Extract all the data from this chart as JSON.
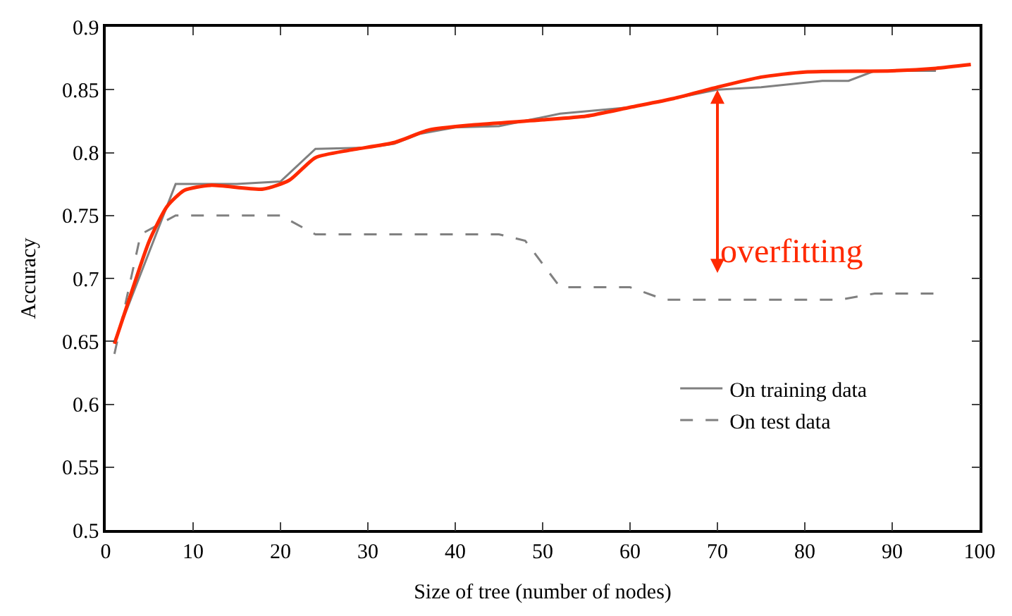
{
  "chart_data": {
    "type": "line",
    "xlabel": "Size of tree (number of nodes)",
    "ylabel": "Accuracy",
    "xlim": [
      0,
      100
    ],
    "xticks": [
      0,
      10,
      20,
      30,
      40,
      50,
      60,
      70,
      80,
      90,
      100
    ],
    "ylim": [
      0.5,
      0.9
    ],
    "yticks": [
      0.5,
      0.55,
      0.6,
      0.65,
      0.7,
      0.75,
      0.8,
      0.85,
      0.9
    ],
    "legend": "bottom right",
    "marker": "none",
    "series": [
      {
        "name": "On training data",
        "color": "#808080",
        "line_style": "solid",
        "x": [
          1,
          8,
          15,
          20,
          24,
          30,
          33,
          36,
          40,
          45,
          52,
          60,
          65,
          70,
          75,
          82,
          85,
          88,
          95
        ],
        "values": [
          0.65,
          0.775,
          0.775,
          0.777,
          0.803,
          0.804,
          0.807,
          0.815,
          0.82,
          0.821,
          0.831,
          0.836,
          0.843,
          0.85,
          0.852,
          0.857,
          0.857,
          0.865,
          0.865
        ]
      },
      {
        "name": "On test data",
        "color": "#808080",
        "line_style": "dashed",
        "x": [
          1,
          4,
          8,
          20,
          24,
          45,
          48,
          52,
          60,
          64,
          84,
          88,
          95
        ],
        "values": [
          0.64,
          0.735,
          0.75,
          0.75,
          0.735,
          0.735,
          0.73,
          0.693,
          0.693,
          0.683,
          0.683,
          0.688,
          0.688
        ]
      },
      {
        "color": "#ff2a00",
        "line_style": "solid",
        "x": [
          1,
          3,
          5,
          7,
          9,
          12,
          18,
          21,
          24,
          28,
          33,
          37,
          42,
          50,
          55,
          60,
          65,
          70,
          75,
          80,
          90,
          95,
          99
        ],
        "values": [
          0.648,
          0.69,
          0.73,
          0.757,
          0.77,
          0.774,
          0.771,
          0.778,
          0.796,
          0.802,
          0.808,
          0.818,
          0.822,
          0.826,
          0.829,
          0.836,
          0.843,
          0.852,
          0.86,
          0.864,
          0.865,
          0.867,
          0.87
        ]
      }
    ],
    "annotations": [
      {
        "text": "overfitting",
        "x": 70,
        "y": 0.85
      }
    ]
  }
}
